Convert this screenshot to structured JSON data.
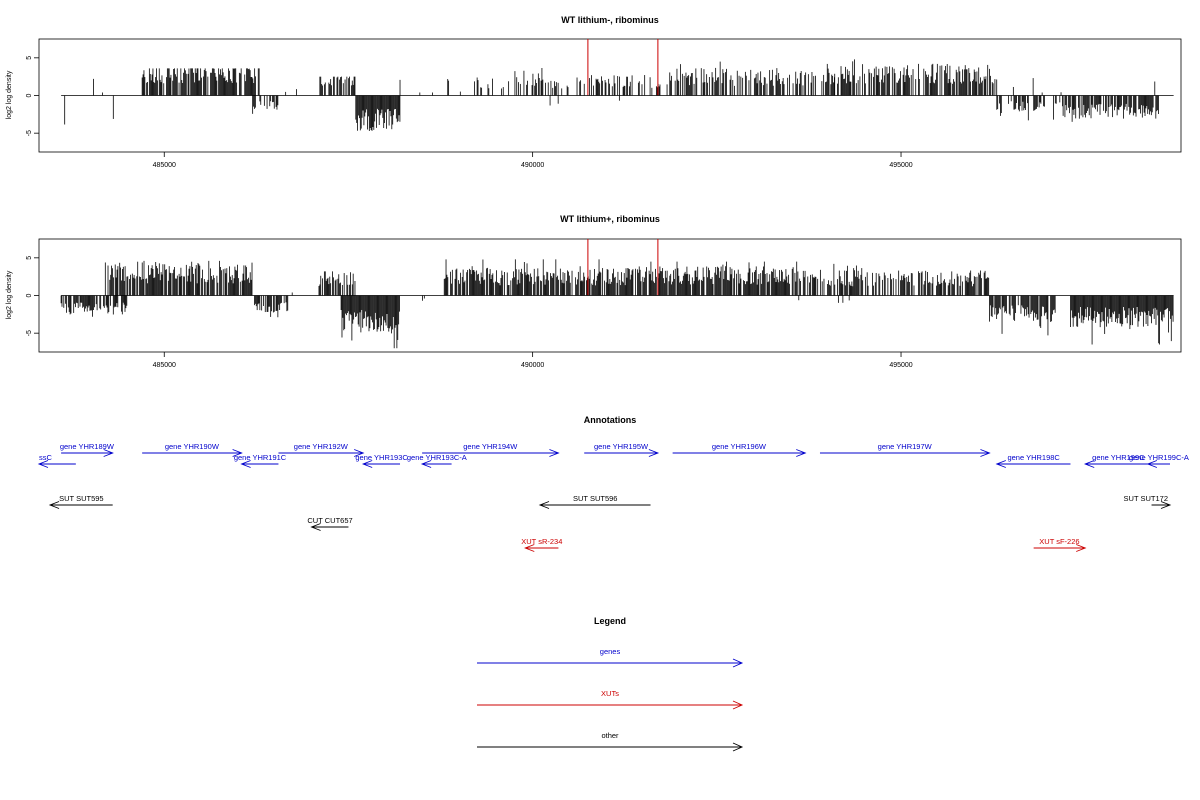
{
  "chart_data": [
    {
      "type": "bar",
      "title": "WT lithium-, ribominus",
      "ylabel": "log2 log density",
      "xlim": [
        483300,
        498800
      ],
      "ylim": [
        -7.5,
        7.5
      ],
      "x_ticks": [
        485000,
        490000,
        495000
      ],
      "x_tick_labels": [
        "485000",
        "490000",
        "495000"
      ],
      "y_ticks": [
        -5,
        0,
        5
      ],
      "y_tick_labels": [
        "-5",
        "0",
        "5"
      ],
      "bar_color": "#000000",
      "marker_color": "#cc0000",
      "markers_x": [
        490750,
        491700
      ],
      "marker_height": 7.5,
      "segments": [
        {
          "x0": 483600,
          "x1": 484700,
          "mean": 0,
          "amp": 4.5,
          "density": 0.05,
          "sign": -1
        },
        {
          "x0": 483650,
          "x1": 484500,
          "mean": 0,
          "amp": 2.5,
          "density": 0.05,
          "sign": 1
        },
        {
          "x0": 484700,
          "x1": 486300,
          "mean": 3.2,
          "amp": 3.6,
          "density": 0.8,
          "sign": 1
        },
        {
          "x0": 486200,
          "x1": 486550,
          "mean": -1.4,
          "amp": 2.5,
          "density": 0.6,
          "sign": -1
        },
        {
          "x0": 486550,
          "x1": 487100,
          "mean": 0,
          "amp": 1.2,
          "density": 0.05,
          "sign": 1
        },
        {
          "x0": 487100,
          "x1": 487600,
          "mean": 2.5,
          "amp": 2.5,
          "density": 0.6,
          "sign": 1
        },
        {
          "x0": 487600,
          "x1": 488200,
          "mean": -3.5,
          "amp": 7.3,
          "density": 1.0,
          "sign": -1
        },
        {
          "x0": 488200,
          "x1": 489100,
          "mean": 0,
          "amp": 2.2,
          "density": 0.12,
          "sign": 1
        },
        {
          "x0": 489100,
          "x1": 490800,
          "mean": 1.8,
          "amp": 3.8,
          "density": 0.35,
          "sign": 1
        },
        {
          "x0": 490800,
          "x1": 491800,
          "mean": 2.0,
          "amp": 3.5,
          "density": 0.45,
          "sign": 1
        },
        {
          "x0": 490200,
          "x1": 491400,
          "mean": -1.0,
          "amp": 2.2,
          "density": 0.04,
          "sign": -1
        },
        {
          "x0": 491800,
          "x1": 494100,
          "mean": 2.5,
          "amp": 4.5,
          "density": 0.6,
          "sign": 1
        },
        {
          "x0": 494100,
          "x1": 496300,
          "mean": 3.0,
          "amp": 4.8,
          "density": 0.7,
          "sign": 1
        },
        {
          "x0": 496300,
          "x1": 497200,
          "mean": -1.5,
          "amp": 3.3,
          "density": 0.45,
          "sign": -1
        },
        {
          "x0": 496500,
          "x1": 497200,
          "mean": 0,
          "amp": 2.4,
          "density": 0.05,
          "sign": 1
        },
        {
          "x0": 497200,
          "x1": 498500,
          "mean": -2.2,
          "amp": 4.2,
          "density": 0.75,
          "sign": -1
        },
        {
          "x0": 498200,
          "x1": 498500,
          "mean": 0,
          "amp": 2.8,
          "density": 0.05,
          "sign": 1
        }
      ]
    },
    {
      "type": "bar",
      "title": "WT lithium+, ribominus",
      "ylabel": "log2 log density",
      "xlim": [
        483300,
        498800
      ],
      "ylim": [
        -7.5,
        7.5
      ],
      "x_ticks": [
        485000,
        490000,
        495000
      ],
      "x_tick_labels": [
        "485000",
        "490000",
        "495000"
      ],
      "y_ticks": [
        -5,
        0,
        5
      ],
      "y_tick_labels": [
        "-5",
        "0",
        "5"
      ],
      "bar_color": "#000000",
      "marker_color": "#cc0000",
      "markers_x": [
        490750,
        491700
      ],
      "marker_height": 7.5,
      "segments": [
        {
          "x0": 483600,
          "x1": 484500,
          "mean": -1.8,
          "amp": 3.6,
          "density": 0.75,
          "sign": -1
        },
        {
          "x0": 484200,
          "x1": 486200,
          "mean": 3.2,
          "amp": 4.6,
          "density": 0.85,
          "sign": 1
        },
        {
          "x0": 486200,
          "x1": 486700,
          "mean": -1.6,
          "amp": 3.6,
          "density": 0.7,
          "sign": -1
        },
        {
          "x0": 486700,
          "x1": 487100,
          "mean": 0,
          "amp": 1.0,
          "density": 0.05,
          "sign": 1
        },
        {
          "x0": 487100,
          "x1": 487600,
          "mean": 2.5,
          "amp": 3.2,
          "density": 0.7,
          "sign": 1
        },
        {
          "x0": 487400,
          "x1": 488200,
          "mean": -3.5,
          "amp": 7.0,
          "density": 1.0,
          "sign": -1
        },
        {
          "x0": 488200,
          "x1": 488800,
          "mean": 0,
          "amp": 1.3,
          "density": 0.06,
          "sign": -1
        },
        {
          "x0": 488800,
          "x1": 491300,
          "mean": 2.6,
          "amp": 4.8,
          "density": 0.8,
          "sign": 1
        },
        {
          "x0": 491300,
          "x1": 493600,
          "mean": 2.8,
          "amp": 4.5,
          "density": 0.85,
          "sign": 1
        },
        {
          "x0": 493600,
          "x1": 494500,
          "mean": -0.8,
          "amp": 1.6,
          "density": 0.08,
          "sign": -1
        },
        {
          "x0": 493600,
          "x1": 496200,
          "mean": 2.4,
          "amp": 4.2,
          "density": 0.6,
          "sign": 1
        },
        {
          "x0": 496200,
          "x1": 497100,
          "mean": -2.5,
          "amp": 5.3,
          "density": 0.9,
          "sign": -1
        },
        {
          "x0": 497100,
          "x1": 497300,
          "mean": 0,
          "amp": 1.2,
          "density": 0.05,
          "sign": 1
        },
        {
          "x0": 497300,
          "x1": 498700,
          "mean": -3.0,
          "amp": 6.5,
          "density": 1.0,
          "sign": -1
        }
      ]
    }
  ],
  "annotations": {
    "title": "Annotations",
    "xlim": [
      483300,
      498800
    ],
    "features": [
      {
        "label": "ssC",
        "x0": 483150,
        "x1": 483800,
        "row": 0,
        "strand": "-",
        "color": "#0000cc"
      },
      {
        "label": "gene YHR189W",
        "x0": 483600,
        "x1": 484300,
        "row": 1,
        "strand": "+",
        "color": "#0000cc"
      },
      {
        "label": "gene YHR190W",
        "x0": 484700,
        "x1": 486050,
        "row": 1,
        "strand": "+",
        "color": "#0000cc"
      },
      {
        "label": "gene YHR191C",
        "x0": 486050,
        "x1": 486550,
        "row": 0,
        "strand": "-",
        "color": "#0000cc"
      },
      {
        "label": "gene YHR192W",
        "x0": 486550,
        "x1": 487700,
        "row": 1,
        "strand": "+",
        "color": "#0000cc"
      },
      {
        "label": "gene YHR193C",
        "x0": 487700,
        "x1": 488200,
        "row": 0,
        "strand": "-",
        "color": "#0000cc"
      },
      {
        "label": "gene YHR193C-A",
        "x0": 488500,
        "x1": 488900,
        "row": 0,
        "strand": "-",
        "color": "#0000cc"
      },
      {
        "label": "gene YHR194W",
        "x0": 488500,
        "x1": 490350,
        "row": 1,
        "strand": "+",
        "color": "#0000cc"
      },
      {
        "label": "gene YHR195W",
        "x0": 490700,
        "x1": 491700,
        "row": 1,
        "strand": "+",
        "color": "#0000cc"
      },
      {
        "label": "gene YHR196W",
        "x0": 491900,
        "x1": 493700,
        "row": 1,
        "strand": "+",
        "color": "#0000cc"
      },
      {
        "label": "gene YHR197W",
        "x0": 493900,
        "x1": 496200,
        "row": 1,
        "strand": "+",
        "color": "#0000cc"
      },
      {
        "label": "gene YHR198C",
        "x0": 496300,
        "x1": 497300,
        "row": 0,
        "strand": "-",
        "color": "#0000cc"
      },
      {
        "label": "gene YHR199C",
        "x0": 497500,
        "x1": 498400,
        "row": 0,
        "strand": "-",
        "color": "#0000cc"
      },
      {
        "label": "gene YHR199C-A",
        "x0": 498350,
        "x1": 498800,
        "row": 0,
        "strand": "-",
        "color": "#0000cc"
      },
      {
        "label": "SUT SUT595",
        "x0": 483450,
        "x1": 484300,
        "row": 2,
        "strand": "-",
        "color": "#000000"
      },
      {
        "label": "SUT SUT596",
        "x0": 490100,
        "x1": 491600,
        "row": 2,
        "strand": "-",
        "color": "#000000"
      },
      {
        "label": "SUT SUT172",
        "x0": 498400,
        "x1": 498800,
        "row": 2,
        "strand": "+",
        "color": "#000000"
      },
      {
        "label": "CUT CUT657",
        "x0": 487000,
        "x1": 487500,
        "row": 3,
        "strand": "-",
        "color": "#000000"
      },
      {
        "label": "XUT sR-234",
        "x0": 489900,
        "x1": 490350,
        "row": 4,
        "strand": "-",
        "color": "#cc0000"
      },
      {
        "label": "XUT sF-226",
        "x0": 496800,
        "x1": 497500,
        "row": 4,
        "strand": "+",
        "color": "#cc0000"
      }
    ]
  },
  "legend": {
    "title": "Legend",
    "items": [
      {
        "label": "genes",
        "color": "#0000cc"
      },
      {
        "label": "XUTs",
        "color": "#cc0000"
      },
      {
        "label": "other",
        "color": "#000000"
      }
    ]
  }
}
